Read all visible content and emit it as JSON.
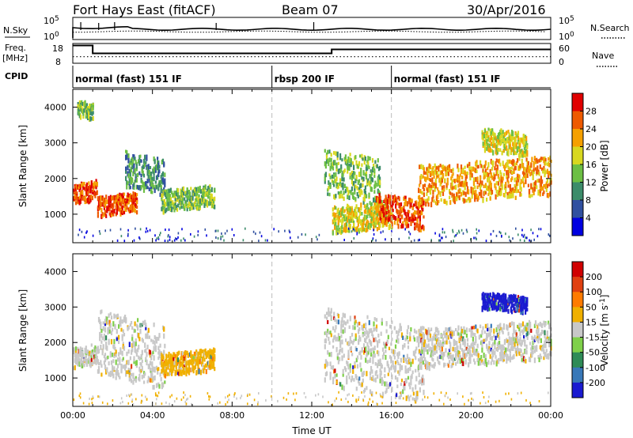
{
  "header": {
    "station": "Fort Hays East (fitACF)",
    "beam": "Beam 07",
    "date": "30/Apr/2016"
  },
  "panels": {
    "nsky_label": "N.Sky",
    "nsearch_label": "N.Search",
    "freq_label": "Freq.",
    "freq_unit": "[MHz]",
    "nave_label": "Nave",
    "cpid_label": "CPID",
    "nsky_ticks": [
      "10^5",
      "10^0"
    ],
    "nsearch_ticks": [
      "10^5",
      "10^0"
    ],
    "freq_ticks": [
      "18",
      "8"
    ],
    "nave_ticks": [
      "60",
      "0"
    ],
    "freq_steps": [
      {
        "start": 0.0,
        "end": 1.0,
        "value": 17
      },
      {
        "start": 1.0,
        "end": 13.0,
        "value": 13
      },
      {
        "start": 13.0,
        "end": 24.0,
        "value": 15
      }
    ],
    "nave_level": 20,
    "cpid_segments": [
      {
        "label": "normal (fast) 151 IF",
        "start": 0.0
      },
      {
        "label": "rbsp 200 IF",
        "start": 10.0
      },
      {
        "label": "normal (fast) 151 IF",
        "start": 16.0
      }
    ]
  },
  "chart_data": [
    {
      "type": "heatmap",
      "name": "power",
      "ylabel": "Slant Range [km]",
      "yticks": [
        1000,
        2000,
        3000,
        4000
      ],
      "ylim": [
        200,
        4500
      ],
      "xlim": [
        0,
        24
      ],
      "colorbar_label": "Power [dB]",
      "colorbar_ticks": [
        "28",
        "24",
        "20",
        "16",
        "12",
        "8",
        "4"
      ],
      "colors": [
        "#0000e0",
        "#3050a0",
        "#3c8c6a",
        "#6cbf44",
        "#d8d820",
        "#f5a000",
        "#ee5a00",
        "#e00000"
      ],
      "echo_regions": [
        {
          "t0": 0.0,
          "t1": 1.2,
          "r0": 1350,
          "r1": 1900,
          "level": 6
        },
        {
          "t0": 0.2,
          "t1": 1.0,
          "r0": 3700,
          "r1": 4150,
          "level": 3
        },
        {
          "t0": 1.2,
          "t1": 3.2,
          "r0": 1000,
          "r1": 1550,
          "level": 6
        },
        {
          "t0": 2.6,
          "t1": 4.6,
          "r0": 1650,
          "r1": 2650,
          "level": 2
        },
        {
          "t0": 4.4,
          "t1": 7.1,
          "r0": 1150,
          "r1": 1750,
          "level": 3
        },
        {
          "t0": 12.6,
          "t1": 15.4,
          "r0": 1400,
          "r1": 2700,
          "level": 3
        },
        {
          "t0": 13.0,
          "t1": 16.0,
          "r0": 550,
          "r1": 1300,
          "level": 4
        },
        {
          "t0": 15.2,
          "t1": 17.6,
          "r0": 650,
          "r1": 1500,
          "level": 6
        },
        {
          "t0": 17.3,
          "t1": 24.0,
          "r0": 1400,
          "r1": 2500,
          "level": 5
        },
        {
          "t0": 20.5,
          "t1": 22.8,
          "r0": 2700,
          "r1": 3350,
          "level": 4
        }
      ]
    },
    {
      "type": "heatmap",
      "name": "velocity",
      "ylabel": "Slant Range [km]",
      "xlabel": "Time UT",
      "yticks": [
        1000,
        2000,
        3000,
        4000
      ],
      "ylim": [
        200,
        4500
      ],
      "xlim": [
        0,
        24
      ],
      "xticks": [
        "00:00",
        "04:00",
        "08:00",
        "12:00",
        "16:00",
        "20:00",
        "00:00"
      ],
      "colorbar_label": "Velocity [m s^-1]",
      "colorbar_ticks": [
        "200",
        "100",
        "50",
        "15",
        "-15",
        "-50",
        "-100",
        "-200"
      ],
      "colors": [
        "#1a1ad0",
        "#3878b8",
        "#2e8b57",
        "#7fd04a",
        "#c8c8c8",
        "#f0b000",
        "#ff7b00",
        "#e04010",
        "#d00000"
      ],
      "echo_regions": [
        {
          "t0": 0.0,
          "t1": 1.2,
          "r0": 1350,
          "r1": 1900,
          "level": 4
        },
        {
          "t0": 1.2,
          "t1": 4.6,
          "r0": 900,
          "r1": 2700,
          "level": 4
        },
        {
          "t0": 4.4,
          "t1": 7.1,
          "r0": 1150,
          "r1": 1750,
          "level": 5
        },
        {
          "t0": 12.6,
          "t1": 17.6,
          "r0": 550,
          "r1": 2700,
          "level": 4
        },
        {
          "t0": 17.3,
          "t1": 24.0,
          "r0": 1400,
          "r1": 2500,
          "level": 4
        },
        {
          "t0": 20.5,
          "t1": 22.8,
          "r0": 2900,
          "r1": 3350,
          "level": 0
        }
      ]
    }
  ]
}
